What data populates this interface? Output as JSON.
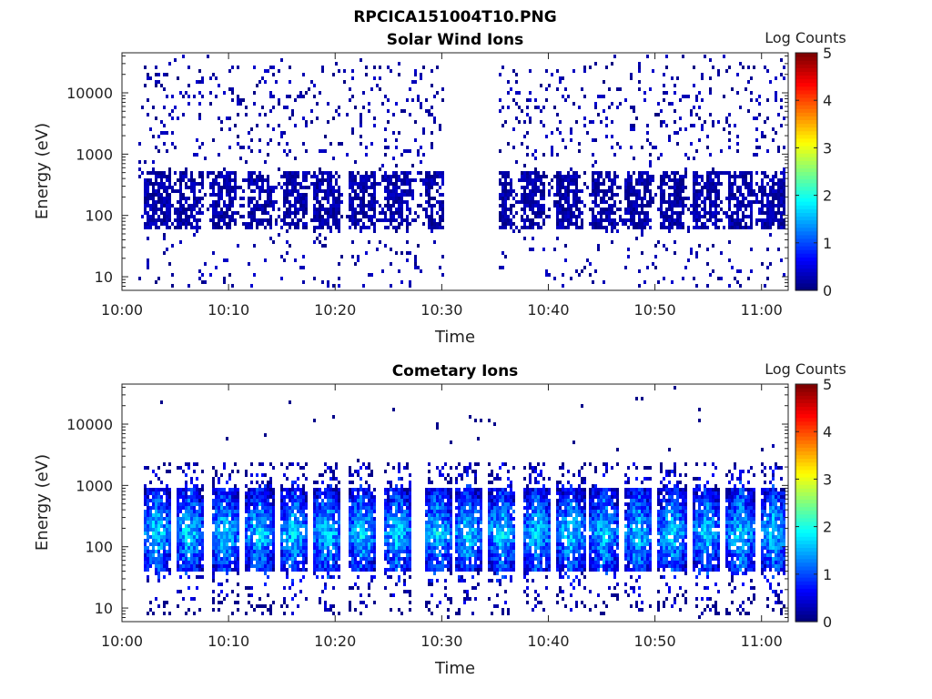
{
  "page_title": "RPCICA151004T10.PNG",
  "panels": [
    {
      "title": "Solar Wind Ions",
      "ylabel": "Energy (eV)",
      "xlabel": "Time",
      "colorbar_label": "Log Counts"
    },
    {
      "title": "Cometary Ions",
      "ylabel": "Energy (eV)",
      "xlabel": "Time",
      "colorbar_label": "Log Counts"
    }
  ],
  "chart_data": [
    {
      "type": "heatmap",
      "title": "Solar Wind Ions",
      "xlabel": "Time",
      "ylabel": "Energy (eV)",
      "x_ticks": [
        "10:00",
        "10:10",
        "10:20",
        "10:30",
        "10:40",
        "10:50",
        "11:00"
      ],
      "y_ticks": [
        "10",
        "100",
        "1000",
        "10000"
      ],
      "y_scale": "log",
      "ylim": [
        6,
        45000
      ],
      "xlim_minutes": [
        0,
        62.5
      ],
      "colorbar": {
        "label": "Log Counts",
        "ticks": [
          "0",
          "1",
          "2",
          "3",
          "4",
          "5"
        ],
        "range": [
          0,
          5
        ],
        "colormap": "jet"
      },
      "data_gap": [
        "10:30",
        "10:33"
      ],
      "sweep_centers_minutes": [
        3.2,
        6.3,
        9.5,
        12.8,
        16.2,
        19.1,
        22.4,
        25.7,
        29.5,
        35.3,
        38.5,
        41.8,
        45.1,
        48.3,
        51.5,
        54.7,
        57.9,
        61.0
      ],
      "dense_energy_band_eV": [
        60,
        600
      ],
      "peak_log_counts": 0.4
    },
    {
      "type": "heatmap",
      "title": "Cometary Ions",
      "xlabel": "Time",
      "ylabel": "Energy (eV)",
      "x_ticks": [
        "10:00",
        "10:10",
        "10:20",
        "10:30",
        "10:40",
        "10:50",
        "11:00"
      ],
      "y_ticks": [
        "10",
        "100",
        "1000",
        "10000"
      ],
      "y_scale": "log",
      "ylim": [
        6,
        45000
      ],
      "xlim_minutes": [
        0,
        62.5
      ],
      "colorbar": {
        "label": "Log Counts",
        "ticks": [
          "0",
          "1",
          "2",
          "3",
          "4",
          "5"
        ],
        "range": [
          0,
          5
        ],
        "colormap": "jet"
      },
      "sweep_centers_minutes": [
        3.1,
        6.2,
        9.5,
        12.8,
        16.0,
        19.1,
        22.4,
        25.7,
        29.5,
        32.3,
        35.5,
        38.8,
        42.0,
        45.1,
        48.3,
        51.5,
        54.7,
        57.9,
        61.0
      ],
      "dense_energy_band_eV": [
        40,
        1000
      ],
      "peak_log_counts": 2.2
    }
  ]
}
